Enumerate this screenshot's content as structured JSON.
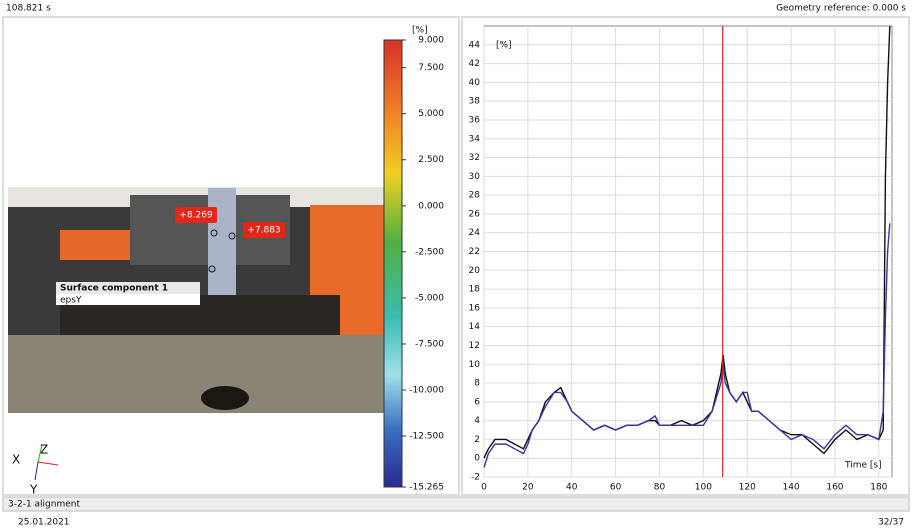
{
  "header": {
    "time": "108.821 s",
    "geometry_reference": "Geometry reference: 0.000 s"
  },
  "footer": {
    "status": "3-2-1 alignment",
    "date": "25.01.2021",
    "page": "32/37"
  },
  "viewer": {
    "labels": [
      "+8.269",
      "+7.883"
    ],
    "component": "Surface component 1",
    "quantity": "epsY",
    "axes": [
      "X",
      "Z",
      "Y"
    ]
  },
  "colorbar": {
    "unit": "[%]",
    "lim": [
      -15.265,
      9
    ],
    "ticks": [
      {
        "value": 9,
        "label": "9.000"
      },
      {
        "value": 7.5,
        "label": "7.500"
      },
      {
        "value": 5,
        "label": "5.000"
      },
      {
        "value": 2.5,
        "label": "2.500"
      },
      {
        "value": 0,
        "label": "0.000"
      },
      {
        "value": -2.5,
        "label": "-2.500"
      },
      {
        "value": -5,
        "label": "-5.000"
      },
      {
        "value": -7.5,
        "label": "-7.500"
      },
      {
        "value": -10,
        "label": "-10.000"
      },
      {
        "value": -12.5,
        "label": "-12.500"
      },
      {
        "value": -15.265,
        "label": "-15.265"
      }
    ]
  },
  "chart_data": {
    "type": "line",
    "x_label": "Time [s]",
    "y_label": "[%]",
    "xlim": [
      0,
      186
    ],
    "ylim": [
      -2,
      46
    ],
    "xticks": [
      0,
      20,
      40,
      60,
      80,
      100,
      120,
      140,
      160,
      180
    ],
    "yticks": [
      -2,
      0,
      2,
      4,
      6,
      8,
      10,
      12,
      14,
      16,
      18,
      20,
      22,
      24,
      26,
      28,
      30,
      32,
      34,
      36,
      38,
      40,
      42,
      44
    ],
    "grid": true,
    "cursor": 108.821,
    "cursor_color": "#d62020",
    "x": [
      0,
      2,
      5,
      8,
      10,
      14,
      18,
      20,
      22,
      25,
      28,
      32,
      35,
      38,
      40,
      45,
      50,
      55,
      60,
      65,
      70,
      75,
      78,
      80,
      85,
      90,
      95,
      100,
      104,
      106,
      108,
      109,
      110,
      112,
      115,
      118,
      120,
      122,
      125,
      130,
      135,
      140,
      145,
      150,
      155,
      160,
      165,
      170,
      175,
      180,
      182,
      183,
      184,
      185
    ],
    "series": [
      {
        "color": "#111111",
        "values": [
          0,
          1,
          2,
          2,
          2,
          1.5,
          1,
          2,
          3,
          4,
          6,
          7,
          7.5,
          6,
          5,
          4,
          3,
          3.5,
          3,
          3.5,
          3.5,
          4,
          4,
          3.5,
          3.5,
          4,
          3.5,
          4,
          5,
          7,
          9,
          11,
          9,
          7,
          6,
          7,
          6,
          5,
          5,
          4,
          3,
          2.5,
          2.5,
          1.5,
          0.5,
          2,
          3,
          2,
          2.5,
          2,
          3,
          30,
          40,
          46
        ]
      },
      {
        "color": "#3a34a8",
        "values": [
          -1,
          0.5,
          1.5,
          1.5,
          1.5,
          1,
          0.5,
          1.5,
          3,
          4,
          5.5,
          7,
          7,
          6,
          5,
          4,
          3,
          3.5,
          3,
          3.5,
          3.5,
          4,
          4.5,
          3.5,
          3.5,
          3.5,
          3.5,
          3.5,
          5,
          6.5,
          8,
          10,
          8,
          7,
          6,
          7,
          7,
          5,
          5,
          4,
          3,
          2,
          2.5,
          2,
          1,
          2.5,
          3.5,
          2.5,
          2.5,
          2,
          5,
          15,
          22,
          25
        ]
      }
    ]
  }
}
